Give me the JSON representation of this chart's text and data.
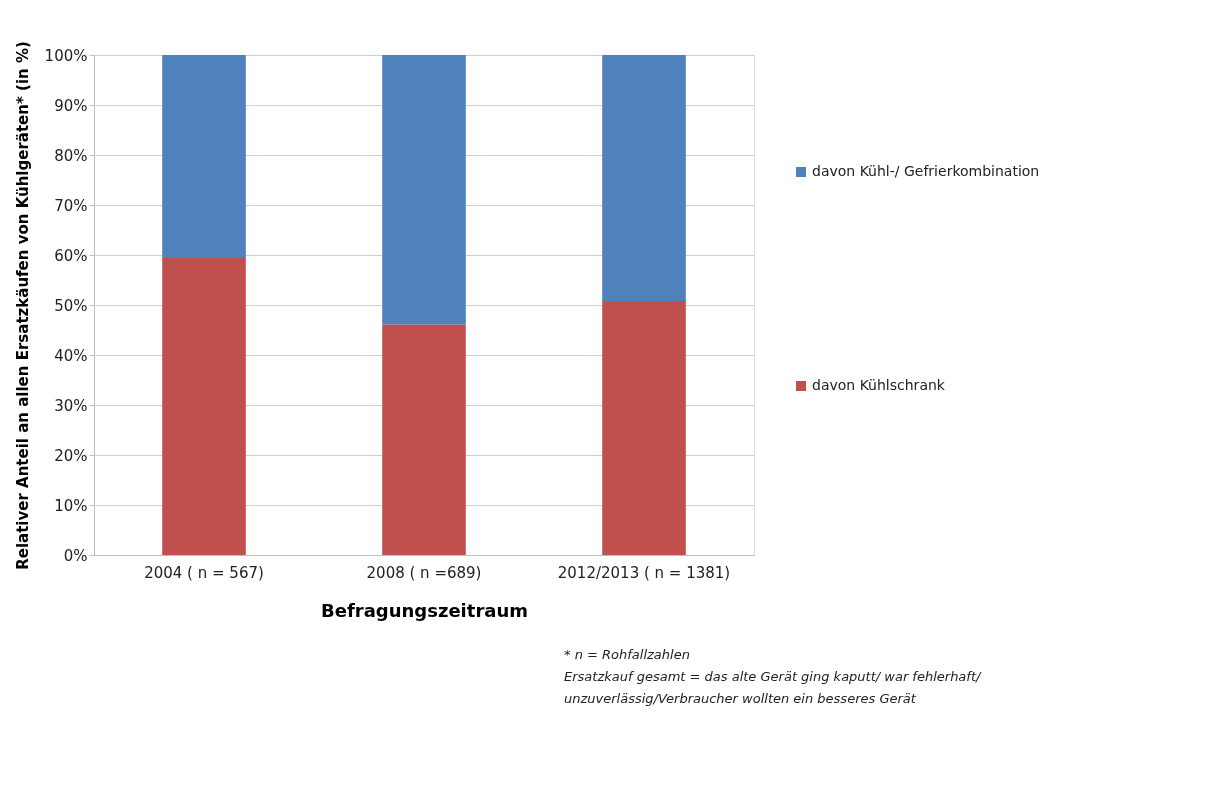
{
  "chart_data": {
    "type": "bar",
    "stacked": true,
    "xlabel": "Befragungszeitraum",
    "ylabel": "Relativer Anteil an allen Ersatzkäufen von Kühlgeräten* (in %)",
    "categories": [
      "2004 ( n = 567)",
      "2008 ( n =689)",
      "2012/2013 ( n = 1381)"
    ],
    "series": [
      {
        "name": "davon Kühlschrank",
        "color": "#c0504d",
        "values": [
          59.4,
          46.1,
          50.8
        ]
      },
      {
        "name": "davon Kühl-/ Gefrierkombination",
        "color": "#4f81bd",
        "values": [
          40.6,
          53.9,
          49.2
        ]
      }
    ],
    "ylim": [
      0,
      100
    ],
    "yticks": [
      {
        "value": 0,
        "label": "0%"
      },
      {
        "value": 10,
        "label": "10%"
      },
      {
        "value": 20,
        "label": "20%"
      },
      {
        "value": 30,
        "label": "30%"
      },
      {
        "value": 40,
        "label": "40%"
      },
      {
        "value": 50,
        "label": "50%"
      },
      {
        "value": 60,
        "label": "60%"
      },
      {
        "value": 70,
        "label": "70%"
      },
      {
        "value": 80,
        "label": "80%"
      },
      {
        "value": 90,
        "label": "90%"
      },
      {
        "value": 100,
        "label": "100%"
      }
    ],
    "grid": "y",
    "legend": "right",
    "annotations": [
      "* n = Rohfallzahlen",
      "Ersatzkauf gesamt = das alte Gerät ging kaputt/ war fehlerhaft/",
      "unzuverlässig/Verbraucher wollten ein besseres Gerät"
    ]
  }
}
